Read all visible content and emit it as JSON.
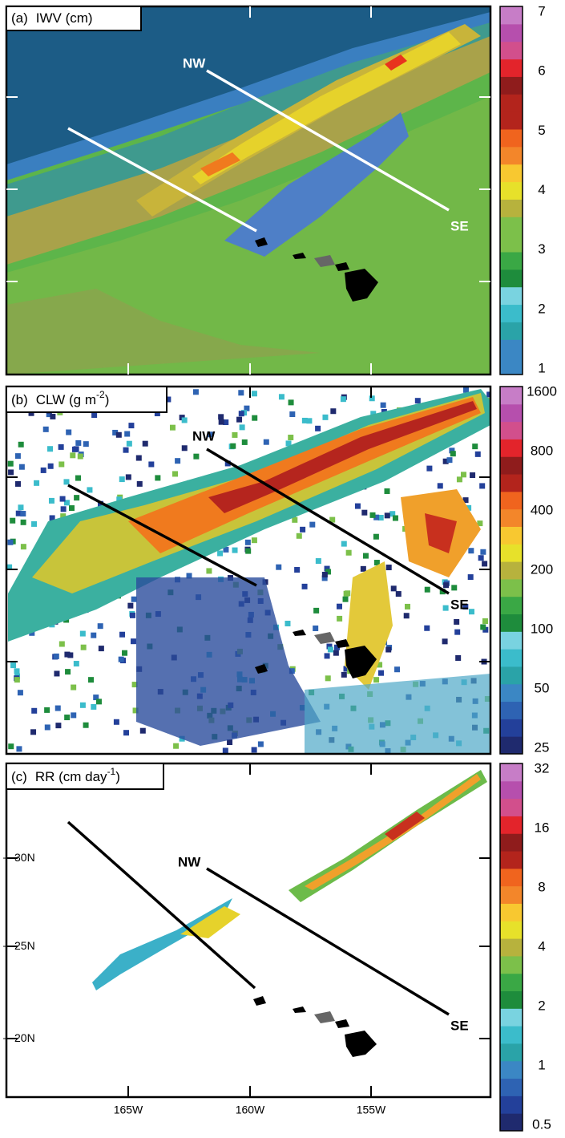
{
  "panels": [
    {
      "label": "(a)",
      "title": "IWV (cm)",
      "line_labels": [
        "NW",
        "SE"
      ],
      "colorbar": [
        "7",
        "6",
        "5",
        "4",
        "3",
        "2",
        "1"
      ]
    },
    {
      "label": "(b)",
      "title": "CLW (g m",
      "title_sup": "-2",
      "title_end": ")",
      "line_labels": [
        "NW",
        "SE"
      ],
      "colorbar": [
        "1600",
        "800",
        "400",
        "200",
        "100",
        "50",
        "25"
      ]
    },
    {
      "label": "(c)",
      "title": "RR (cm day",
      "title_sup": "-1",
      "title_end": ")",
      "line_labels": [
        "NW",
        "SE"
      ],
      "colorbar": [
        "32",
        "16",
        "8",
        "4",
        "2",
        "1",
        "0.5"
      ],
      "y_labels": [
        "30N",
        "25N",
        "20N"
      ],
      "x_labels": [
        "165W",
        "160W",
        "155W"
      ]
    }
  ]
}
